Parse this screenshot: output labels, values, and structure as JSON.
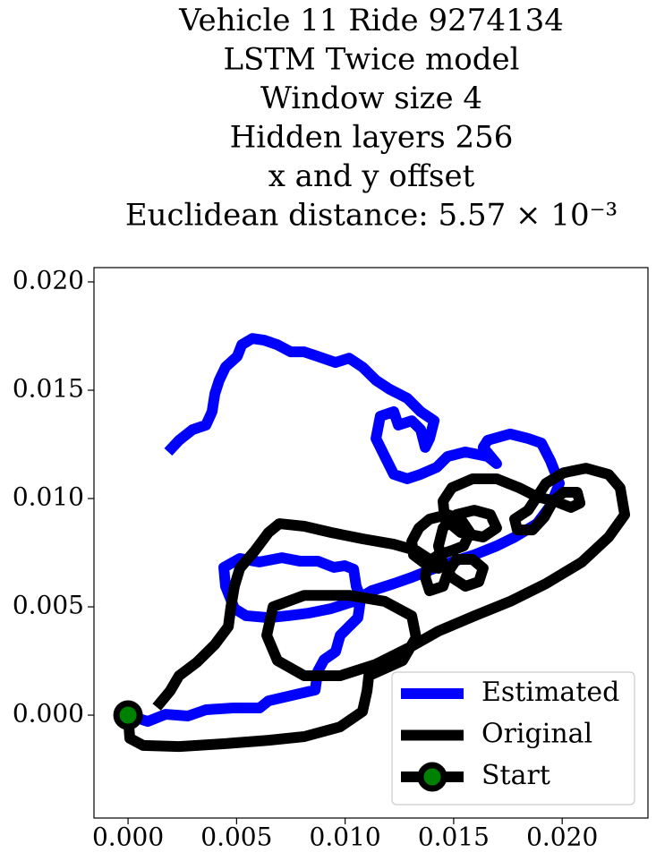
{
  "chart_data": {
    "type": "line",
    "title": [
      "Vehicle 11 Ride 9274134",
      "LSTM Twice model",
      "Window size 4",
      "Hidden layers 256",
      "x and y offset",
      "Euclidean distance: 5.57 × 10⁻³"
    ],
    "xlim": [
      -0.00157,
      0.02395
    ],
    "ylim": [
      -0.00475,
      0.02066
    ],
    "xticks": [
      {
        "value": 0,
        "label": "0.000"
      },
      {
        "value": 0.005,
        "label": "0.005"
      },
      {
        "value": 0.01,
        "label": "0.010"
      },
      {
        "value": 0.015,
        "label": "0.015"
      },
      {
        "value": 0.02,
        "label": "0.020"
      }
    ],
    "yticks": [
      {
        "value": 0,
        "label": "0.000"
      },
      {
        "value": 0.005,
        "label": "0.005"
      },
      {
        "value": 0.01,
        "label": "0.010"
      },
      {
        "value": 0.015,
        "label": "0.015"
      },
      {
        "value": 0.02,
        "label": "0.020"
      }
    ],
    "legend": "lower right",
    "series": [
      {
        "name": "Estimated",
        "color": "#0000ff",
        "x": [
          0,
          0.00091,
          0.00173,
          0.00276,
          0.00359,
          0.00482,
          0.00606,
          0.00647,
          0.00771,
          0.00862,
          0.00874,
          0.00903,
          0.00956,
          0.00977,
          0.01018,
          0.01059,
          0.01072,
          0.01051,
          0.01039,
          0.00998,
          0.00948,
          0.00874,
          0.00791,
          0.00709,
          0.00606,
          0.00515,
          0.00441,
          0.00449,
          0.0049,
          0.00544,
          0.00647,
          0.00738,
          0.00833,
          0.00936,
          0.01039,
          0.01121,
          0.01224,
          0.01307,
          0.01389,
          0.01492,
          0.01595,
          0.01698,
          0.01781,
          0.01884,
          0.01946,
          0.01987,
          0.01946,
          0.01904,
          0.01843,
          0.0176,
          0.01657,
          0.01636,
          0.01698,
          0.01657,
          0.01554,
          0.01472,
          0.01422,
          0.01348,
          0.01286,
          0.01224,
          0.01183,
          0.01142,
          0.01162,
          0.01224,
          0.01245,
          0.01307,
          0.01348,
          0.01369,
          0.01389,
          0.0141,
          0.01348,
          0.01286,
          0.01204,
          0.01142,
          0.0108,
          0.01018,
          0.00956,
          0.00874,
          0.00812,
          0.0075,
          0.00688,
          0.00627,
          0.00573,
          0.00524,
          0.00503,
          0.00449,
          0.0042,
          0.004,
          0.00387,
          0.00359,
          0.00297,
          0.00235,
          0.00185
        ],
        "values": [
          0,
          -0.00029,
          4e-05,
          -4e-05,
          0.00025,
          0.00033,
          0.00033,
          0.00066,
          0.00095,
          0.00116,
          0.00202,
          0.00256,
          0.00293,
          0.00368,
          0.00409,
          0.0045,
          0.00541,
          0.00595,
          0.00674,
          0.0069,
          0.00682,
          0.00711,
          0.00711,
          0.00727,
          0.00707,
          0.00723,
          0.00682,
          0.00595,
          0.00492,
          0.00459,
          0.0045,
          0.00459,
          0.00471,
          0.00492,
          0.00525,
          0.00574,
          0.00607,
          0.00636,
          0.00669,
          0.00707,
          0.0074,
          0.00781,
          0.00822,
          0.00884,
          0.00967,
          0.0107,
          0.01174,
          0.01256,
          0.01277,
          0.01298,
          0.01269,
          0.01236,
          0.01161,
          0.01194,
          0.01215,
          0.01194,
          0.01144,
          0.01112,
          0.01091,
          0.01112,
          0.01194,
          0.01277,
          0.0138,
          0.01401,
          0.01339,
          0.01359,
          0.01318,
          0.01236,
          0.01277,
          0.01359,
          0.01401,
          0.01463,
          0.01505,
          0.01546,
          0.01607,
          0.01648,
          0.01628,
          0.01656,
          0.01677,
          0.01677,
          0.0171,
          0.01731,
          0.01739,
          0.0171,
          0.01656,
          0.01607,
          0.01546,
          0.01484,
          0.01401,
          0.01339,
          0.01318,
          0.01269,
          0.01215
        ]
      },
      {
        "name": "Original",
        "color": "#000000",
        "x": [
          0,
          8e-05,
          0.0007,
          0.00235,
          0.00441,
          0.00647,
          0.00812,
          0.00977,
          0.0108,
          0.01101,
          0.01109,
          0.01265,
          0.01327,
          0.01307,
          0.01183,
          0.01018,
          0.00812,
          0.00668,
          0.00639,
          0.00688,
          0.00812,
          0.00977,
          0.01142,
          0.01307,
          0.0143,
          0.01595,
          0.0176,
          0.01925,
          0.0209,
          0.02214,
          0.02288,
          0.02267,
          0.02214,
          0.0211,
          0.02007,
          0.01925,
          0.01884,
          0.01843,
          0.01781,
          0.01793,
          0.01863,
          0.01917,
          0.01958,
          0.02007,
          0.02069,
          0.02082,
          0.0204,
          0.01966,
          0.01884,
          0.01801,
          0.01698,
          0.01587,
          0.01492,
          0.01451,
          0.01459,
          0.01533,
          0.01636,
          0.01698,
          0.01669,
          0.01595,
          0.01513,
          0.01451,
          0.0143,
          0.01451,
          0.01492,
          0.01554,
          0.01616,
          0.01636,
          0.01587,
          0.01513,
          0.01472,
          0.01451,
          0.01389,
          0.01369,
          0.01381,
          0.0143,
          0.01492,
          0.01546,
          0.01575,
          0.01533,
          0.01472,
          0.01389,
          0.0134,
          0.01307,
          0.01315,
          0.01381,
          0.0143,
          0.01389,
          0.01327,
          0.01224,
          0.0108,
          0.00936,
          0.00812,
          0.00697,
          0.00647,
          0.00585,
          0.00515,
          0.0049,
          0.00474,
          0.00462,
          0.004,
          0.00317,
          0.00235,
          0.00194,
          0.00132
        ],
        "values": [
          0,
          -0.00107,
          -0.0014,
          -0.00145,
          -0.00132,
          -0.00116,
          -0.00099,
          -0.00054,
          0.00017,
          0.00112,
          0.00182,
          0.00252,
          0.00359,
          0.00458,
          0.00525,
          0.00553,
          0.00553,
          0.005,
          0.00368,
          0.00252,
          0.00182,
          0.00182,
          0.00235,
          0.00318,
          0.00388,
          0.00458,
          0.00525,
          0.00607,
          0.00706,
          0.00822,
          0.00925,
          0.01049,
          0.01111,
          0.0114,
          0.01119,
          0.0107,
          0.01008,
          0.00946,
          0.00905,
          0.00855,
          0.00855,
          0.00913,
          0.00988,
          0.01029,
          0.01029,
          0.00979,
          0.00959,
          0.00988,
          0.01008,
          0.0105,
          0.01091,
          0.01091,
          0.0105,
          0.00988,
          0.00905,
          0.00843,
          0.00822,
          0.00864,
          0.00926,
          0.00946,
          0.00926,
          0.00864,
          0.00781,
          0.00698,
          0.00636,
          0.00595,
          0.00616,
          0.00678,
          0.00719,
          0.00719,
          0.00657,
          0.00595,
          0.00574,
          0.00636,
          0.00707,
          0.0074,
          0.0076,
          0.00781,
          0.00843,
          0.00905,
          0.00926,
          0.00905,
          0.00864,
          0.00802,
          0.0074,
          0.0069,
          0.00678,
          0.00719,
          0.0076,
          0.00789,
          0.00814,
          0.00843,
          0.00872,
          0.00884,
          0.00843,
          0.0076,
          0.00678,
          0.00595,
          0.005,
          0.00409,
          0.00326,
          0.00244,
          0.00182,
          0.00112,
          0.00037
        ]
      },
      {
        "name": "Start",
        "color": "#000000",
        "marker": "o",
        "marker_color": "#008000",
        "x": [
          0
        ],
        "values": [
          0
        ]
      }
    ]
  }
}
